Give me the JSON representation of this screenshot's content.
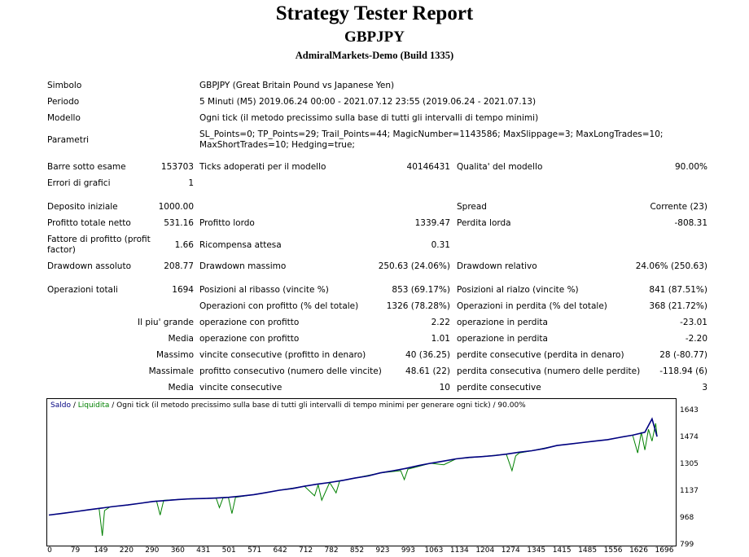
{
  "header": {
    "title": "Strategy Tester Report",
    "symbol": "GBPJPY",
    "server": "AdmiralMarkets-Demo (Build 1335)"
  },
  "info": {
    "symbol_label": "Simbolo",
    "symbol_value": "GBPJPY (Great Britain Pound vs Japanese Yen)",
    "period_label": "Periodo",
    "period_value": "5 Minuti (M5) 2019.06.24 00:00 - 2021.07.12 23:55 (2019.06.24 - 2021.07.13)",
    "model_label": "Modello",
    "model_value": "Ogni tick (il metodo precissimo sulla base di tutti gli intervalli di tempo minimi)",
    "params_label": "Parametri",
    "params_value": "SL_Points=0; TP_Points=29; Trail_Points=44; MagicNumber=1143586; MaxSlippage=3; MaxLongTrades=10; MaxShortTrades=10; Hedging=true;"
  },
  "stats": {
    "bars_label": "Barre sotto esame",
    "bars_value": "153703",
    "ticks_label": "Ticks adoperati per il modello",
    "ticks_value": "40146431",
    "quality_label": "Qualita' del modello",
    "quality_value": "90.00%",
    "errors_label": "Errori di grafici",
    "errors_value": "1",
    "deposit_label": "Deposito iniziale",
    "deposit_value": "1000.00",
    "spread_label": "Spread",
    "spread_value": "Corrente (23)",
    "netprofit_label": "Profitto totale netto",
    "netprofit_value": "531.16",
    "grossprofit_label": "Profitto lordo",
    "grossprofit_value": "1339.47",
    "grossloss_label": "Perdita lorda",
    "grossloss_value": "-808.31",
    "pf_label": "Fattore di profitto (profit factor)",
    "pf_value": "1.66",
    "payoff_label": "Ricompensa attesa",
    "payoff_value": "0.31",
    "absdd_label": "Drawdown assoluto",
    "absdd_value": "208.77",
    "maxdd_label": "Drawdown massimo",
    "maxdd_value": "250.63 (24.06%)",
    "reldd_label": "Drawdown relativo",
    "reldd_value": "24.06% (250.63)",
    "trades_label": "Operazioni totali",
    "trades_value": "1694",
    "short_label": "Posizioni al ribasso (vincite %)",
    "short_value": "853 (69.17%)",
    "long_label": "Posizioni al rialzo (vincite %)",
    "long_value": "841 (87.51%)",
    "profittrades_label": "Operazioni con profitto (% del totale)",
    "profittrades_value": "1326 (78.28%)",
    "losstrades_label": "Operazioni in perdita (% del totale)",
    "losstrades_value": "368 (21.72%)",
    "largest_label": "Il piu' grande",
    "largest_profit_label": "operazione con profitto",
    "largest_profit_value": "2.22",
    "largest_loss_label": "operazione in perdita",
    "largest_loss_value": "-23.01",
    "average_label": "Media",
    "avg_profit_label": "operazione con profitto",
    "avg_profit_value": "1.01",
    "avg_loss_label": "operazione in perdita",
    "avg_loss_value": "-2.20",
    "maximum_label": "Massimo",
    "max_consec_wins_label": "vincite consecutive (profitto in denaro)",
    "max_consec_wins_value": "40 (36.25)",
    "max_consec_losses_label": "perdite consecutive (perdita in denaro)",
    "max_consec_losses_value": "28 (-80.77)",
    "maximal_label": "Massimale",
    "maximal_profit_label": "profitto consecutivo (numero delle vincite)",
    "maximal_profit_value": "48.61 (22)",
    "maximal_loss_label": "perdita consecutiva (numero delle perdite)",
    "maximal_loss_value": "-118.94 (6)",
    "average2_label": "Media",
    "avg_consec_wins_label": "vincite consecutive",
    "avg_consec_wins_value": "10",
    "avg_consec_losses_label": "perdite consecutive",
    "avg_consec_losses_value": "3"
  },
  "chart_data": {
    "type": "line",
    "legend_balance": "Saldo",
    "legend_sep1": " / ",
    "legend_equity": "Liquidita",
    "legend_rest": " / Ogni tick (il metodo precissimo sulla base di tutti gli intervalli di tempo minimi per generare ogni tick) / 90.00%",
    "balance_color": "#000080",
    "equity_color": "#008000",
    "y_ticks": [
      "1643",
      "1474",
      "1305",
      "1137",
      "968",
      "799"
    ],
    "x_ticks": [
      "0",
      "79",
      "149",
      "220",
      "290",
      "360",
      "431",
      "501",
      "571",
      "642",
      "712",
      "782",
      "852",
      "923",
      "993",
      "1063",
      "1134",
      "1204",
      "1274",
      "1345",
      "1415",
      "1485",
      "1556",
      "1626",
      "1696"
    ],
    "ylim": [
      799,
      1680
    ],
    "xlim": [
      0,
      1730
    ],
    "series": [
      {
        "name": "Saldo",
        "x": [
          0,
          40,
          79,
          110,
          149,
          180,
          220,
          255,
          290,
          325,
          360,
          395,
          431,
          466,
          501,
          536,
          571,
          600,
          642,
          680,
          712,
          745,
          782,
          820,
          852,
          890,
          923,
          960,
          993,
          1030,
          1063,
          1100,
          1134,
          1170,
          1204,
          1240,
          1274,
          1310,
          1345,
          1380,
          1415,
          1450,
          1485,
          1520,
          1556,
          1590,
          1626,
          1660,
          1680,
          1694
        ],
        "y": [
          1000,
          1012,
          1025,
          1035,
          1048,
          1058,
          1068,
          1080,
          1092,
          1098,
          1105,
          1110,
          1112,
          1115,
          1120,
          1128,
          1138,
          1150,
          1168,
          1180,
          1195,
          1208,
          1220,
          1235,
          1250,
          1265,
          1285,
          1300,
          1315,
          1335,
          1350,
          1365,
          1380,
          1390,
          1395,
          1402,
          1412,
          1425,
          1435,
          1450,
          1470,
          1480,
          1490,
          1500,
          1510,
          1525,
          1540,
          1560,
          1650,
          1531
        ]
      },
      {
        "name": "Liquidita",
        "x": [
          0,
          40,
          79,
          140,
          149,
          155,
          170,
          220,
          255,
          300,
          310,
          320,
          360,
          431,
          466,
          475,
          485,
          500,
          510,
          520,
          571,
          642,
          712,
          740,
          750,
          760,
          782,
          800,
          810,
          852,
          923,
          980,
          990,
          1000,
          1063,
          1100,
          1134,
          1204,
          1274,
          1290,
          1300,
          1310,
          1345,
          1415,
          1485,
          1556,
          1626,
          1640,
          1650,
          1660,
          1670,
          1680,
          1690,
          1694
        ],
        "y": [
          1000,
          1012,
          1025,
          1045,
          860,
          1030,
          1055,
          1068,
          1080,
          1095,
          1000,
          1100,
          1105,
          1112,
          1115,
          1050,
          1115,
          1120,
          1010,
          1120,
          1138,
          1168,
          1195,
          1130,
          1205,
          1100,
          1220,
          1150,
          1230,
          1250,
          1285,
          1300,
          1240,
          1310,
          1350,
          1340,
          1380,
          1395,
          1412,
          1300,
          1400,
          1420,
          1435,
          1470,
          1490,
          1510,
          1540,
          1420,
          1560,
          1440,
          1580,
          1500,
          1620,
          1531
        ]
      }
    ]
  }
}
